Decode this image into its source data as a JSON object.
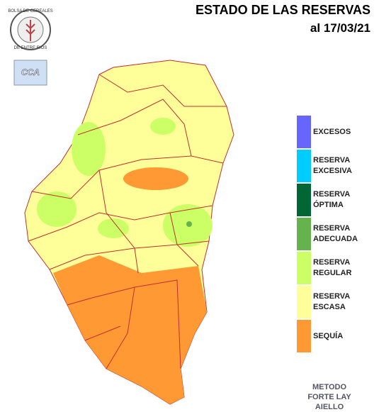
{
  "header": {
    "title": "ESTADO DE LAS RESERVAS",
    "date": "al 17/03/21"
  },
  "logo": {
    "top": "BOLSA DE CEREALES",
    "bottom": "DE ENTRE RIOS",
    "badge": "CCA"
  },
  "legend": [
    {
      "lines": [
        "EXCESOS"
      ],
      "color": "#6666ff"
    },
    {
      "lines": [
        "RESERVA",
        "EXCESIVA"
      ],
      "color": "#00ccff"
    },
    {
      "lines": [
        "RESERVA",
        "ÓPTIMA"
      ],
      "color": "#006633"
    },
    {
      "lines": [
        "RESERVA",
        "ADECUADA"
      ],
      "color": "#66b34d"
    },
    {
      "lines": [
        "RESERVA",
        "REGULAR"
      ],
      "color": "#ccff66"
    },
    {
      "lines": [
        "RESERVA",
        "ESCASA"
      ],
      "color": "#ffff99"
    },
    {
      "lines": [
        "SEQUÍA"
      ],
      "color": "#ff9933"
    }
  ],
  "footer": [
    "METODO",
    "FORTE LAY",
    "AIELLO"
  ]
}
